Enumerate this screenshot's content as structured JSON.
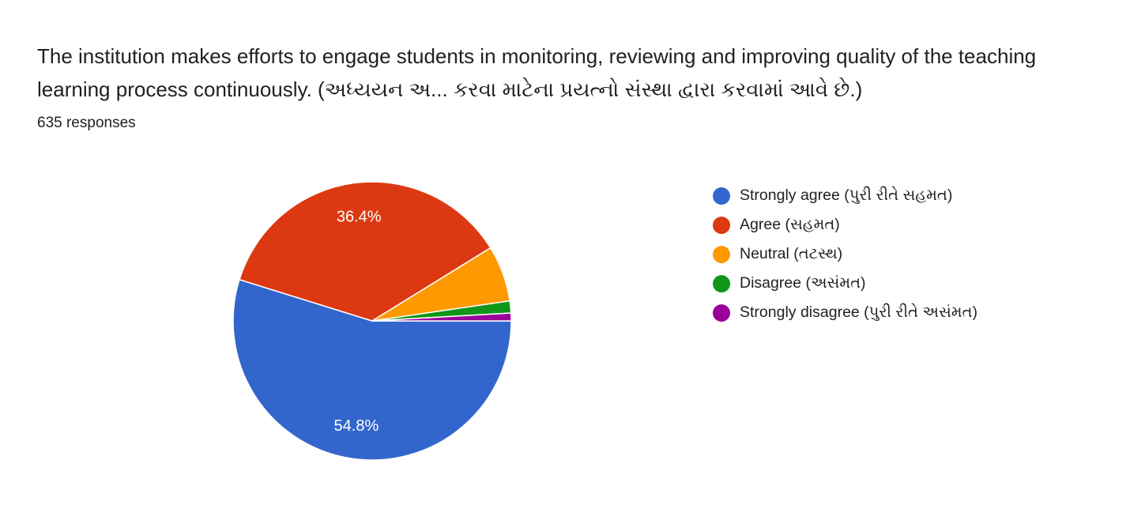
{
  "question": {
    "title": "The institution makes efforts to engage students in monitoring, reviewing and improving quality of the teaching learning process continuously. (અધ્યયન અ... કરવા માટેના પ્રયત્નો સંસ્થા દ્વારા કરવામાં આવે છે.)",
    "responses_label": "635 responses"
  },
  "chart_data": {
    "type": "pie",
    "title": "The institution makes efforts to engage students in monitoring, reviewing and improving quality of the teaching learning process continuously. (અધ્યયન અ... કરવા માટેના પ્રયત્નો સંસ્થા દ્વારા કરવામાં આવે છે.)",
    "total_responses": 635,
    "legend_position": "right",
    "slices": [
      {
        "label": "Strongly agree (પુરી રીતે સહમત)",
        "value": 54.8,
        "display": "54.8%",
        "color": "#3366cc"
      },
      {
        "label": "Agree (સહમત)",
        "value": 36.4,
        "display": "36.4%",
        "color": "#dc3912"
      },
      {
        "label": "Neutral (તટસ્થ)",
        "value": 6.5,
        "display": "",
        "color": "#ff9900"
      },
      {
        "label": "Disagree (અસંમત)",
        "value": 1.4,
        "display": "",
        "color": "#109618"
      },
      {
        "label": "Strongly disagree (પુરી રીતે અસંમત)",
        "value": 0.9,
        "display": "",
        "color": "#990099"
      }
    ]
  }
}
